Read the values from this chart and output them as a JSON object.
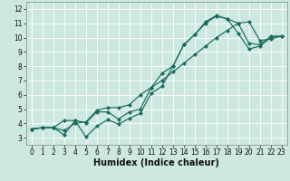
{
  "xlabel": "Humidex (Indice chaleur)",
  "ylabel": "",
  "bg_color": "#cce8e0",
  "grid_color": "#ffffff",
  "line_color": "#1a6b5e",
  "xlim": [
    -0.5,
    23.5
  ],
  "ylim": [
    2.5,
    12.5
  ],
  "xticks": [
    0,
    1,
    2,
    3,
    4,
    5,
    6,
    7,
    8,
    9,
    10,
    11,
    12,
    13,
    14,
    15,
    16,
    17,
    18,
    19,
    20,
    21,
    22,
    23
  ],
  "yticks": [
    3,
    4,
    5,
    6,
    7,
    8,
    9,
    10,
    11,
    12
  ],
  "line1_x": [
    0,
    1,
    2,
    3,
    4,
    5,
    6,
    7,
    8,
    9,
    10,
    11,
    12,
    13,
    14,
    15,
    16,
    17,
    18,
    19,
    20,
    21,
    22,
    23
  ],
  "line1_y": [
    3.6,
    3.7,
    3.7,
    3.2,
    4.2,
    3.05,
    3.8,
    4.25,
    3.95,
    4.35,
    4.7,
    6.1,
    6.6,
    8.0,
    9.5,
    10.2,
    11.1,
    11.55,
    11.3,
    11.0,
    9.6,
    9.5,
    10.1,
    10.1
  ],
  "line2_x": [
    0,
    1,
    2,
    3,
    4,
    5,
    6,
    7,
    8,
    9,
    10,
    11,
    12,
    13,
    14,
    15,
    16,
    17,
    18,
    19,
    20,
    21,
    22,
    23
  ],
  "line2_y": [
    3.6,
    3.7,
    3.7,
    4.2,
    4.2,
    4.05,
    4.8,
    4.8,
    4.3,
    4.8,
    5.0,
    6.5,
    7.5,
    8.0,
    9.5,
    10.2,
    11.0,
    11.5,
    11.3,
    10.3,
    9.2,
    9.4,
    10.0,
    10.1
  ],
  "line3_x": [
    0,
    1,
    2,
    3,
    4,
    5,
    6,
    7,
    8,
    9,
    10,
    11,
    12,
    13,
    14,
    15,
    16,
    17,
    18,
    19,
    20,
    21,
    22,
    23
  ],
  "line3_y": [
    3.6,
    3.7,
    3.7,
    3.5,
    4.0,
    4.1,
    4.9,
    5.1,
    5.1,
    5.3,
    6.0,
    6.5,
    7.0,
    7.6,
    8.2,
    8.8,
    9.4,
    10.0,
    10.5,
    11.0,
    11.1,
    9.8,
    9.9,
    10.1
  ],
  "tick_fontsize": 5.5,
  "xlabel_fontsize": 7.0,
  "linewidth": 0.85,
  "markersize": 2.2
}
